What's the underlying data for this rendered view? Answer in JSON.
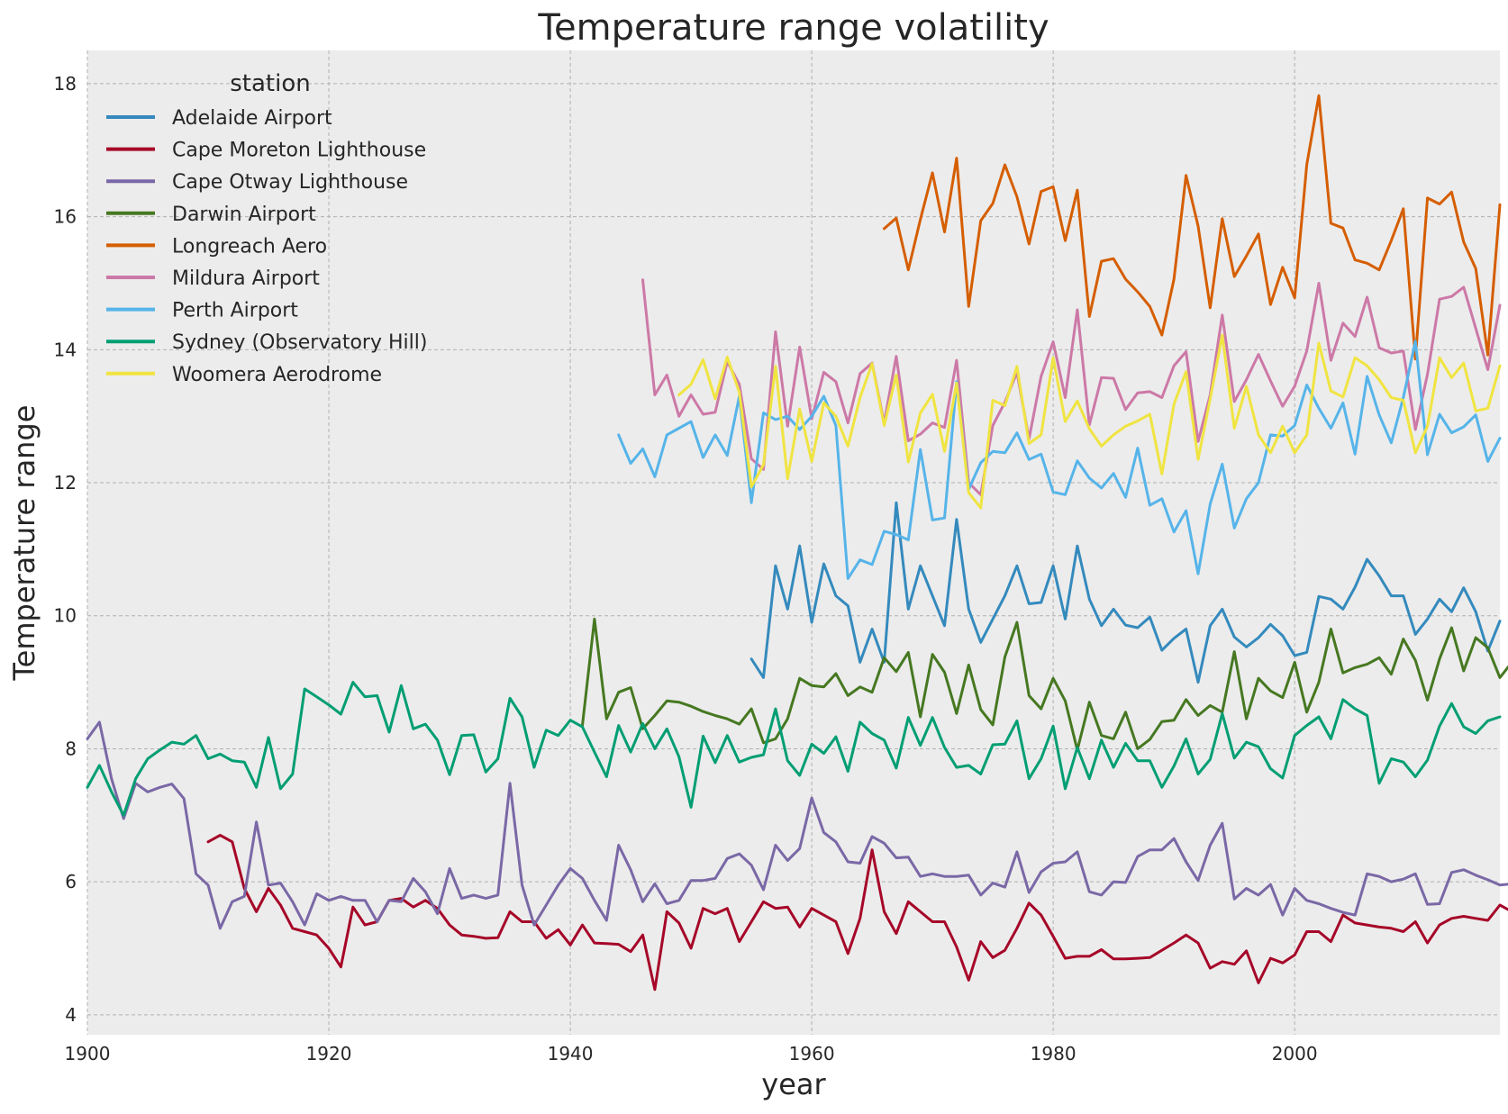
{
  "chart_data": {
    "type": "line",
    "title": "Temperature range volatility",
    "xlabel": "year",
    "ylabel": "Temperature range",
    "xlim": [
      1900,
      2017
    ],
    "ylim": [
      3.7,
      18.5
    ],
    "xticks": [
      1900,
      1920,
      1940,
      1960,
      1980,
      2000
    ],
    "yticks": [
      4,
      6,
      8,
      10,
      12,
      14,
      16,
      18
    ],
    "grid": true,
    "background": "#ececec",
    "legend": {
      "title": "station",
      "placement": "top-left"
    },
    "series": [
      {
        "name": "Adelaide Airport",
        "color": "#348abd",
        "start_year": 1955,
        "values": [
          9.35,
          9.07,
          10.75,
          10.1,
          11.05,
          9.9,
          10.78,
          10.3,
          10.15,
          9.3,
          9.8,
          9.3,
          11.7,
          10.1,
          10.75,
          10.3,
          9.85,
          11.45,
          10.1,
          9.6,
          9.95,
          10.3,
          10.75,
          10.18,
          10.2,
          10.75,
          9.95,
          11.05,
          10.25,
          9.85,
          10.1,
          9.86,
          9.82,
          9.98,
          9.48,
          9.66,
          9.8,
          9.0,
          9.85,
          10.1,
          9.68,
          9.53,
          9.67,
          9.87,
          9.7,
          9.4,
          9.45,
          10.29,
          10.25,
          10.1,
          10.43,
          10.85,
          10.6,
          10.3,
          10.3,
          9.72,
          9.95,
          10.25,
          10.06,
          10.42,
          10.06,
          9.47,
          9.92
        ]
      },
      {
        "name": "Cape Moreton Lighthouse",
        "color": "#a60628",
        "start_year": 1910,
        "values": [
          6.6,
          6.7,
          6.6,
          5.9,
          5.55,
          5.9,
          5.65,
          5.3,
          5.25,
          5.2,
          5.0,
          4.72,
          5.62,
          5.35,
          5.4,
          5.72,
          5.75,
          5.62,
          5.72,
          5.6,
          5.35,
          5.2,
          5.18,
          5.15,
          5.16,
          5.55,
          5.4,
          5.4,
          5.15,
          5.28,
          5.05,
          5.35,
          5.08,
          5.07,
          5.06,
          4.95,
          5.2,
          4.38,
          5.55,
          5.38,
          5.0,
          5.6,
          5.52,
          5.6,
          5.1,
          5.4,
          5.7,
          5.6,
          5.62,
          5.32,
          5.6,
          5.5,
          5.4,
          4.92,
          5.45,
          6.48,
          5.55,
          5.22,
          5.7,
          5.55,
          5.4,
          5.4,
          5.02,
          4.52,
          5.1,
          4.86,
          4.97,
          5.3,
          5.68,
          5.5,
          5.18,
          4.85,
          4.88,
          4.88,
          4.98,
          4.84,
          4.84,
          4.85,
          4.86,
          4.97,
          5.08,
          5.2,
          5.08,
          4.7,
          4.8,
          4.76,
          4.96,
          4.48,
          4.85,
          4.78,
          4.9,
          5.25,
          5.25,
          5.1,
          5.5,
          5.38,
          5.35,
          5.32,
          5.3,
          5.25,
          5.4,
          5.08,
          5.35,
          5.45,
          5.48,
          5.45,
          5.42,
          5.65,
          5.55
        ]
      },
      {
        "name": "Cape Otway Lighthouse",
        "color": "#7a68a6",
        "start_year": 1900,
        "values": [
          8.15,
          8.4,
          7.55,
          6.95,
          7.48,
          7.35,
          7.42,
          7.47,
          7.25,
          6.12,
          5.95,
          5.3,
          5.7,
          5.78,
          6.9,
          5.95,
          5.98,
          5.7,
          5.35,
          5.82,
          5.72,
          5.78,
          5.72,
          5.72,
          5.4,
          5.72,
          5.7,
          6.05,
          5.85,
          5.52,
          6.2,
          5.75,
          5.8,
          5.75,
          5.8,
          7.48,
          5.95,
          5.35,
          5.65,
          5.95,
          6.2,
          6.05,
          5.72,
          5.42,
          6.55,
          6.18,
          5.7,
          5.97,
          5.67,
          5.72,
          6.02,
          6.02,
          6.05,
          6.35,
          6.42,
          6.25,
          5.88,
          6.55,
          6.32,
          6.5,
          7.26,
          6.74,
          6.6,
          6.3,
          6.28,
          6.68,
          6.58,
          6.36,
          6.37,
          6.08,
          6.12,
          6.08,
          6.08,
          6.1,
          5.8,
          5.98,
          5.92,
          6.45,
          5.84,
          6.15,
          6.28,
          6.3,
          6.45,
          5.85,
          5.8,
          6.0,
          5.99,
          6.38,
          6.48,
          6.48,
          6.65,
          6.3,
          6.02,
          6.55,
          6.88,
          5.74,
          5.9,
          5.8,
          5.96,
          5.5,
          5.9,
          5.72,
          5.67,
          5.6,
          5.54,
          5.5,
          6.12,
          6.08,
          6.0,
          6.04,
          6.12,
          5.66,
          5.67,
          6.14,
          6.18,
          6.1,
          6.03,
          5.95,
          5.97
        ]
      },
      {
        "name": "Darwin Airport",
        "color": "#467821",
        "start_year": 1941,
        "values": [
          8.35,
          9.95,
          8.45,
          8.85,
          8.92,
          8.3,
          8.5,
          8.72,
          8.7,
          8.64,
          8.56,
          8.5,
          8.45,
          8.37,
          8.6,
          8.09,
          8.15,
          8.45,
          9.06,
          8.95,
          8.93,
          9.13,
          8.8,
          8.93,
          8.85,
          9.37,
          9.16,
          9.45,
          8.48,
          9.42,
          9.15,
          8.53,
          9.26,
          8.59,
          8.36,
          9.38,
          9.9,
          8.8,
          8.6,
          9.06,
          8.72,
          7.98,
          8.7,
          8.2,
          8.15,
          8.55,
          8.0,
          8.14,
          8.41,
          8.43,
          8.74,
          8.5,
          8.65,
          8.55,
          9.46,
          8.45,
          9.06,
          8.87,
          8.77,
          9.3,
          8.55,
          9.0,
          9.8,
          9.14,
          9.22,
          9.27,
          9.37,
          9.12,
          9.65,
          9.33,
          8.73,
          9.35,
          9.82,
          9.17,
          9.67,
          9.52,
          9.07,
          9.3
        ]
      },
      {
        "name": "Longreach Aero",
        "color": "#d55e00",
        "start_year": 1966,
        "values": [
          15.82,
          15.98,
          15.2,
          15.96,
          16.66,
          15.77,
          16.88,
          14.65,
          15.94,
          16.2,
          16.78,
          16.3,
          15.59,
          16.38,
          16.45,
          15.64,
          16.4,
          14.5,
          15.33,
          15.37,
          15.06,
          14.87,
          14.65,
          14.22,
          15.06,
          16.62,
          15.86,
          14.63,
          15.97,
          15.1,
          15.41,
          15.74,
          14.68,
          15.24,
          14.78,
          16.78,
          17.82,
          15.9,
          15.83,
          15.35,
          15.3,
          15.2,
          15.64,
          16.12,
          13.86,
          16.28,
          16.19,
          16.37,
          15.62,
          15.22,
          13.92,
          16.18
        ]
      },
      {
        "name": "Mildura Airport",
        "color": "#cc79a7",
        "start_year": 1946,
        "values": [
          15.05,
          13.32,
          13.62,
          13.0,
          13.32,
          13.03,
          13.06,
          13.82,
          13.48,
          12.36,
          12.2,
          14.27,
          12.85,
          14.04,
          12.96,
          13.66,
          13.52,
          12.9,
          13.64,
          13.8,
          12.9,
          13.9,
          12.63,
          12.73,
          12.9,
          12.83,
          13.84,
          12.0,
          11.82,
          12.86,
          13.21,
          13.66,
          12.66,
          13.6,
          14.12,
          13.28,
          14.6,
          12.87,
          13.58,
          13.57,
          13.1,
          13.35,
          13.37,
          13.28,
          13.76,
          13.97,
          12.62,
          13.32,
          14.52,
          13.22,
          13.55,
          13.93,
          13.53,
          13.15,
          13.45,
          13.98,
          15.0,
          13.84,
          14.4,
          14.2,
          14.79,
          14.03,
          13.95,
          13.98,
          12.8,
          13.63,
          14.76,
          14.8,
          14.94,
          14.32,
          13.7,
          14.67
        ]
      },
      {
        "name": "Perth Airport",
        "color": "#56b4e9",
        "start_year": 1944,
        "values": [
          12.72,
          12.29,
          12.51,
          12.09,
          12.72,
          12.82,
          12.92,
          12.38,
          12.72,
          12.41,
          13.3,
          11.7,
          13.05,
          12.95,
          13.0,
          12.8,
          13.0,
          13.3,
          12.86,
          10.56,
          10.84,
          10.77,
          11.27,
          11.22,
          11.14,
          12.5,
          11.44,
          11.47,
          13.52,
          11.9,
          12.3,
          12.47,
          12.45,
          12.75,
          12.35,
          12.43,
          11.86,
          11.82,
          12.33,
          12.07,
          11.92,
          12.14,
          11.78,
          12.52,
          11.66,
          11.76,
          11.26,
          11.58,
          10.63,
          11.68,
          12.28,
          11.32,
          11.76,
          12.0,
          12.72,
          12.7,
          12.86,
          13.47,
          13.12,
          12.82,
          13.2,
          12.43,
          13.6,
          13.02,
          12.6,
          13.28,
          14.13,
          12.42,
          13.03,
          12.75,
          12.84,
          13.02,
          12.32,
          12.67
        ]
      },
      {
        "name": "Sydney (Observatory Hill)",
        "color": "#009e73",
        "start_year": 1900,
        "values": [
          7.42,
          7.75,
          7.35,
          7.0,
          7.55,
          7.85,
          7.98,
          8.1,
          8.07,
          8.2,
          7.85,
          7.92,
          7.82,
          7.8,
          7.42,
          8.17,
          7.4,
          7.62,
          8.9,
          8.78,
          8.66,
          8.52,
          9.0,
          8.78,
          8.8,
          8.25,
          8.95,
          8.3,
          8.37,
          8.13,
          7.61,
          8.2,
          8.21,
          7.65,
          7.85,
          8.76,
          8.48,
          7.72,
          8.28,
          8.2,
          8.43,
          8.33,
          7.95,
          7.58,
          8.35,
          7.95,
          8.38,
          8.0,
          8.3,
          7.88,
          7.12,
          8.19,
          7.79,
          8.2,
          7.8,
          7.87,
          7.91,
          8.6,
          7.82,
          7.6,
          8.07,
          7.93,
          8.18,
          7.66,
          8.4,
          8.23,
          8.13,
          7.71,
          8.47,
          8.05,
          8.47,
          8.02,
          7.72,
          7.75,
          7.62,
          8.06,
          8.07,
          8.42,
          7.55,
          7.85,
          8.34,
          7.4,
          8.02,
          7.55,
          8.13,
          7.72,
          8.08,
          7.82,
          7.82,
          7.42,
          7.74,
          8.15,
          7.62,
          7.84,
          8.53,
          7.86,
          8.1,
          8.03,
          7.7,
          7.56,
          8.2,
          8.35,
          8.48,
          8.15,
          8.74,
          8.6,
          8.5,
          7.48,
          7.85,
          7.8,
          7.58,
          7.83,
          8.34,
          8.68,
          8.33,
          8.23,
          8.42,
          8.48
        ]
      },
      {
        "name": "Woomera Aerodrome",
        "color": "#f0e442",
        "start_year": 1949,
        "values": [
          13.32,
          13.48,
          13.85,
          13.26,
          13.89,
          13.36,
          11.94,
          12.27,
          13.75,
          12.06,
          13.11,
          12.32,
          13.2,
          13.0,
          12.55,
          13.28,
          13.79,
          12.86,
          13.62,
          12.31,
          13.05,
          13.33,
          12.47,
          13.5,
          11.85,
          11.62,
          13.24,
          13.16,
          13.75,
          12.59,
          12.72,
          13.88,
          12.92,
          13.23,
          12.81,
          12.55,
          12.72,
          12.85,
          12.93,
          13.03,
          12.13,
          13.18,
          13.67,
          12.35,
          13.26,
          14.22,
          12.82,
          13.45,
          12.72,
          12.45,
          12.85,
          12.45,
          12.72,
          14.1,
          13.38,
          13.29,
          13.88,
          13.76,
          13.55,
          13.28,
          13.24,
          12.45,
          12.85,
          13.88,
          13.58,
          13.8,
          13.08,
          13.12,
          13.76
        ]
      }
    ]
  }
}
